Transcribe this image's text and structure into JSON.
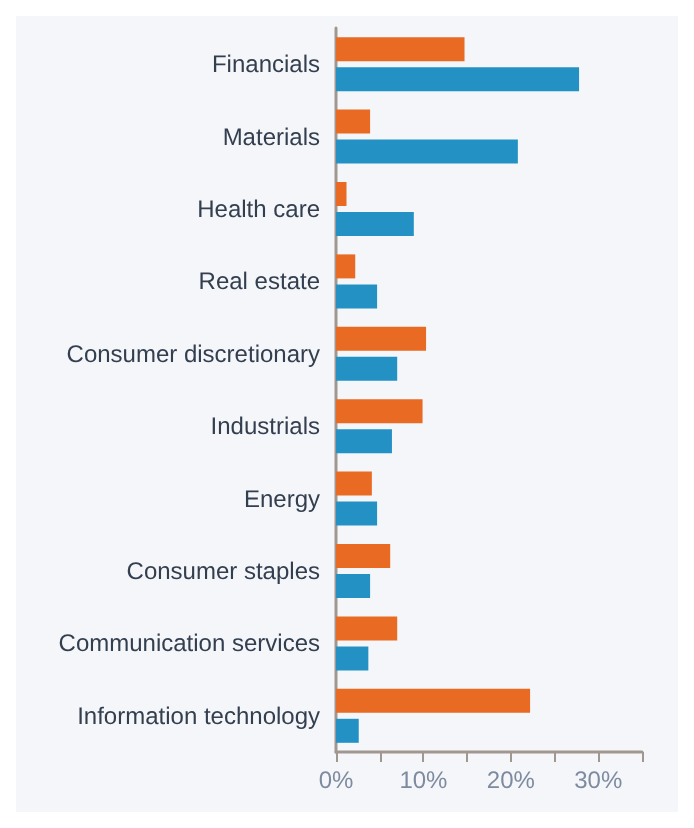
{
  "chart_data": {
    "type": "bar",
    "orientation": "horizontal",
    "categories": [
      "Financials",
      "Materials",
      "Health care",
      "Real estate",
      "Consumer discretionary",
      "Industrials",
      "Energy",
      "Consumer staples",
      "Communication services",
      "Information technology"
    ],
    "series": [
      {
        "color": "#e96a22",
        "values": [
          14.7,
          3.9,
          1.2,
          2.2,
          10.3,
          9.9,
          4.1,
          6.2,
          7.0,
          22.2
        ]
      },
      {
        "color": "#2391c4",
        "values": [
          27.8,
          20.8,
          8.9,
          4.7,
          7.0,
          6.4,
          4.7,
          3.9,
          3.7,
          2.6
        ]
      }
    ],
    "xlim": [
      0,
      35
    ],
    "xticks": [
      {
        "value": 0,
        "label": "0%"
      },
      {
        "value": 5,
        "label": null
      },
      {
        "value": 10,
        "label": "10%"
      },
      {
        "value": 15,
        "label": null
      },
      {
        "value": 20,
        "label": "20%"
      },
      {
        "value": 25,
        "label": null
      },
      {
        "value": 30,
        "label": "30%"
      },
      {
        "value": 35,
        "label": null
      }
    ],
    "grid": false,
    "legend": false
  }
}
